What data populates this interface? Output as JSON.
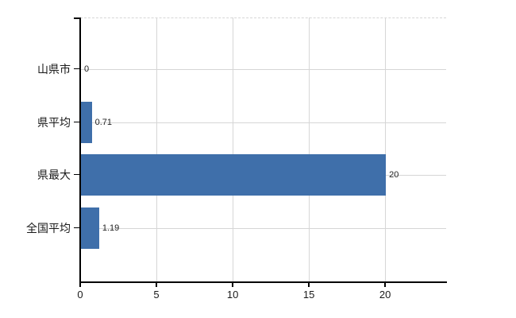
{
  "chart_data": {
    "type": "bar",
    "orientation": "horizontal",
    "title": "",
    "xlabel": "",
    "ylabel": "",
    "categories": [
      "山県市",
      "県平均",
      "県最大",
      "全国平均"
    ],
    "values": [
      0,
      0.71,
      20,
      1.19
    ],
    "value_labels": [
      "0",
      "0.71",
      "20",
      "1.19"
    ],
    "x_ticks": [
      0,
      5,
      10,
      15,
      20
    ],
    "x_tick_labels": [
      "0",
      "5",
      "10",
      "15",
      "20"
    ],
    "xlim": [
      0,
      24
    ],
    "grid": true,
    "legend": false,
    "colors": {
      "bar": "#3f6faa",
      "grid": "#d6d6d6",
      "axis": "#000000",
      "category_text": "#1a1a1a",
      "value_text": "#222222",
      "tick_text": "#1a1a1a",
      "background": "#ffffff"
    }
  }
}
